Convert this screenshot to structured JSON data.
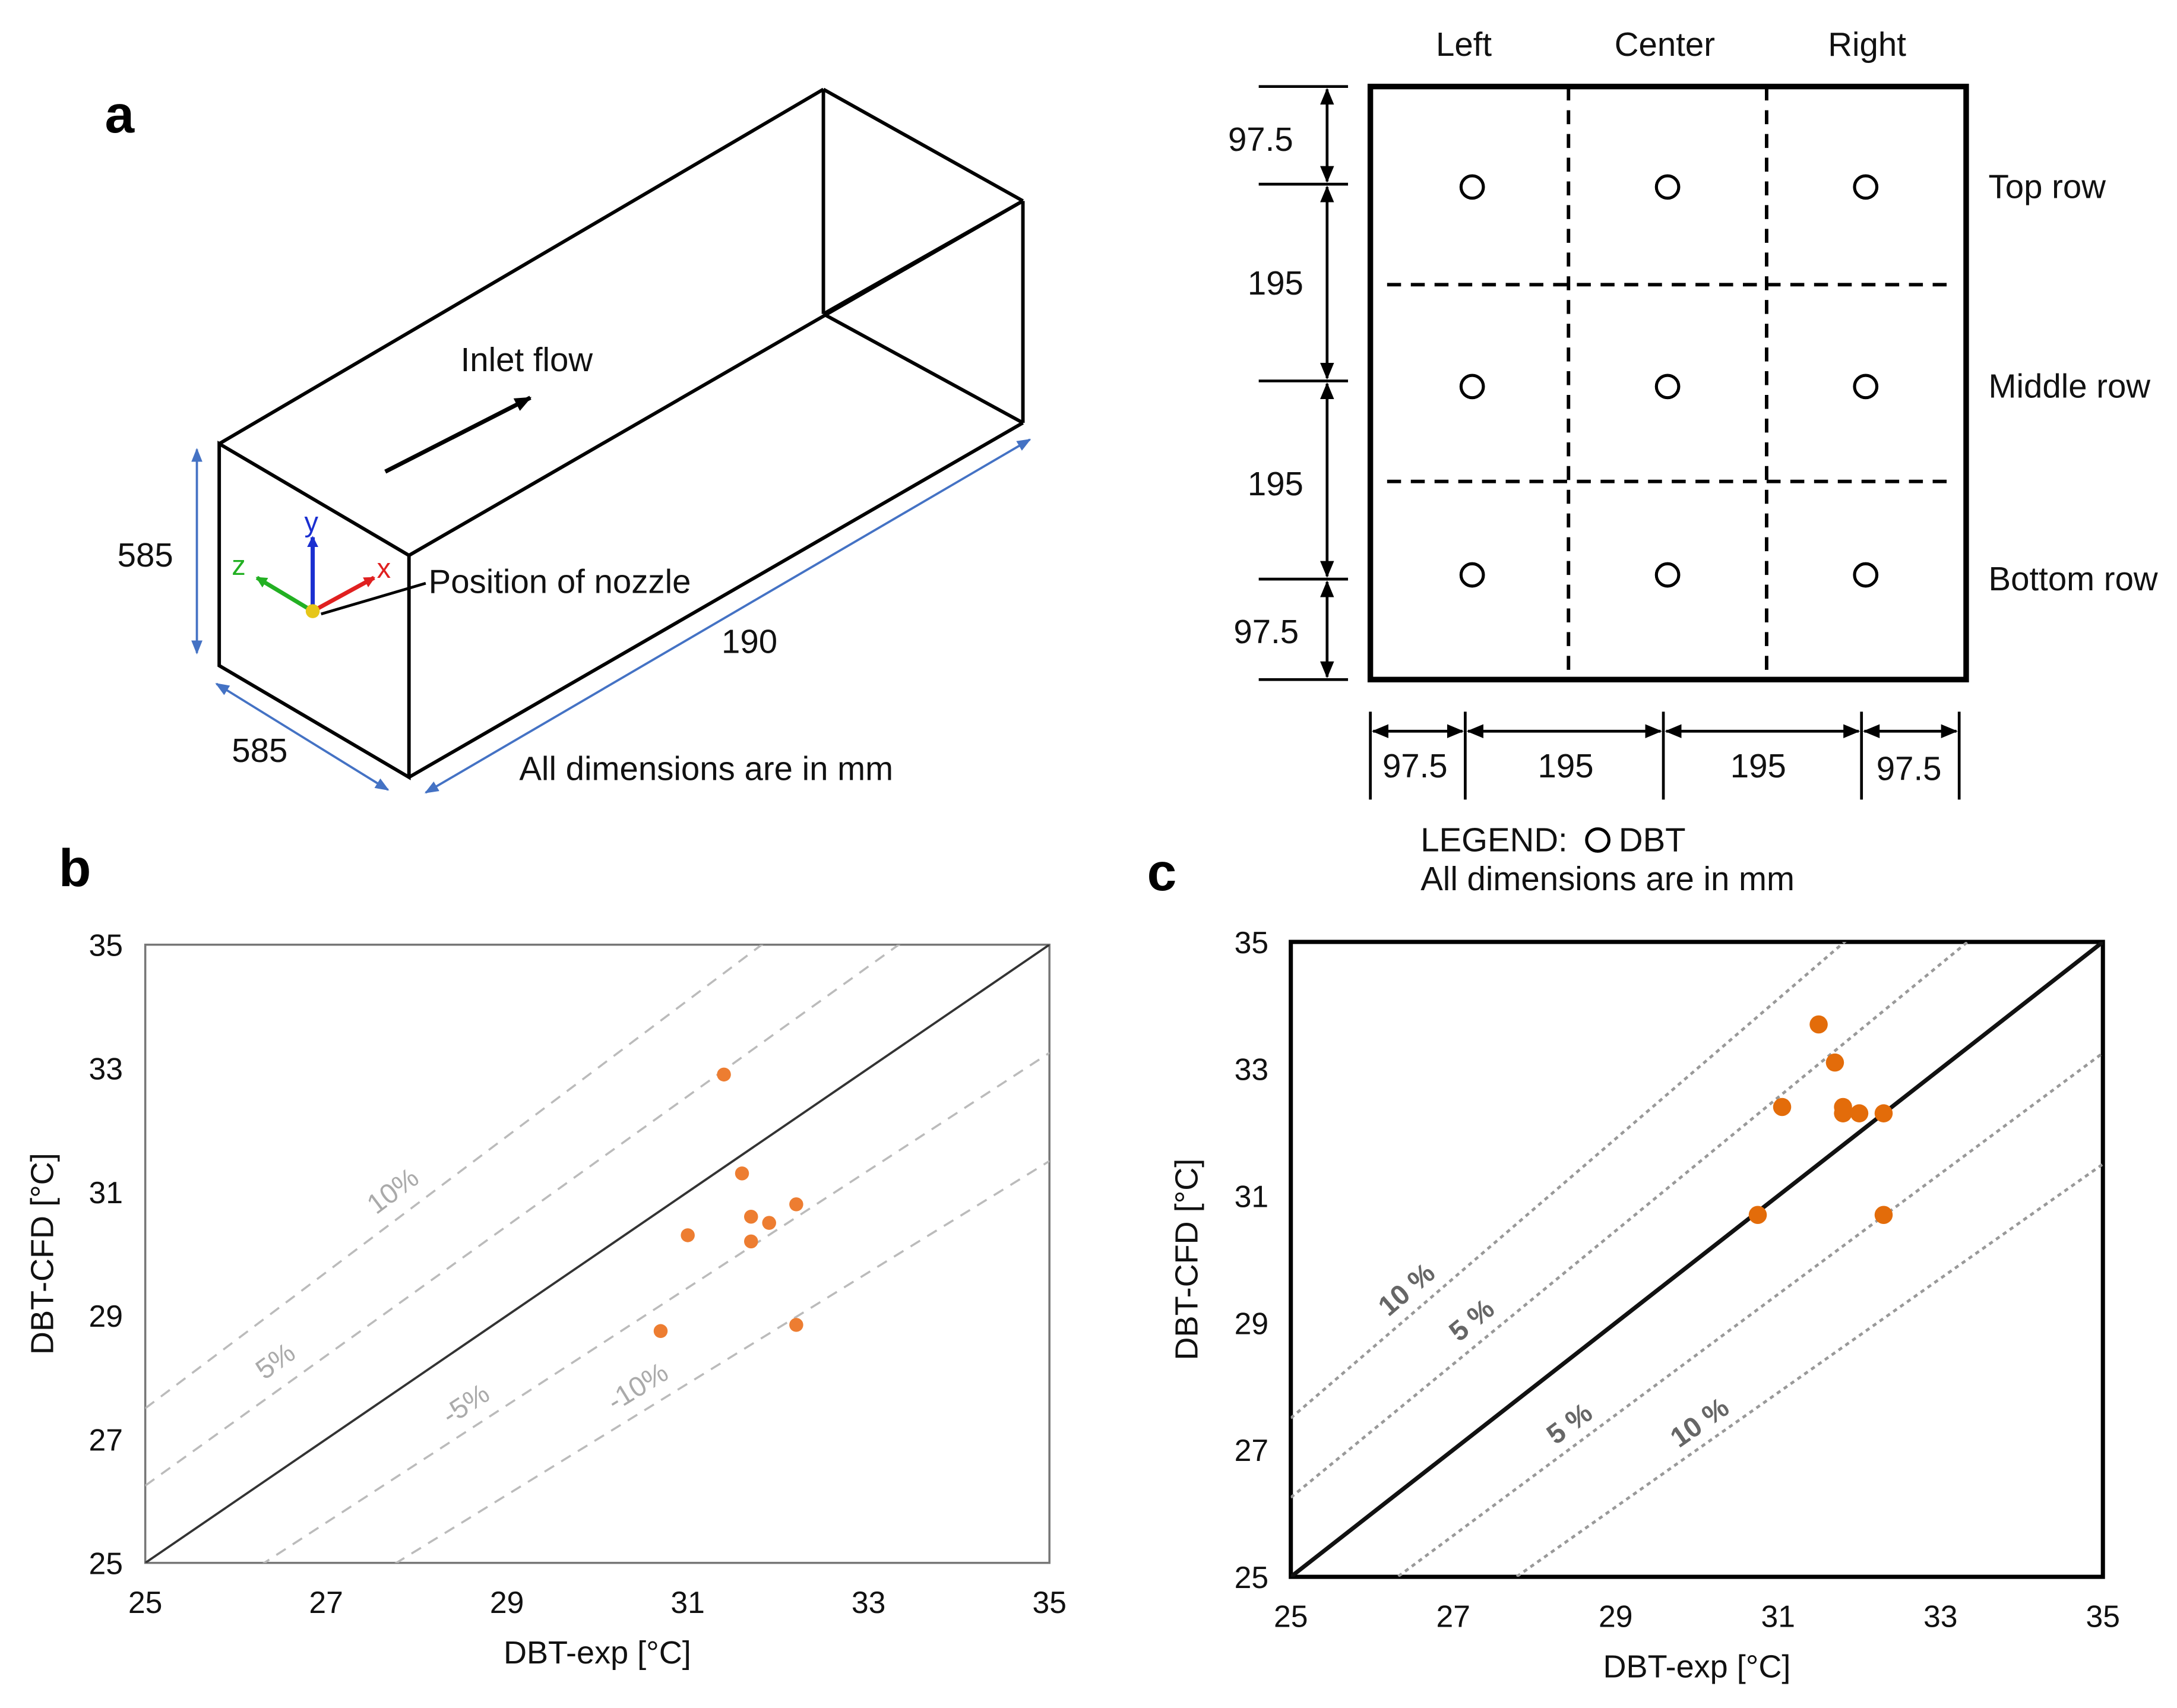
{
  "panel_a": {
    "letter": "a",
    "inlet_label": "Inlet flow",
    "nozzle_label": "Position of nozzle",
    "height_dim": "585",
    "width_dim": "585",
    "length_dim": "190",
    "note": "All dimensions are in mm",
    "axes": {
      "x": "x",
      "y": "y",
      "z": "z"
    },
    "colors": {
      "dimension": "#4472c4",
      "x_axis": "#e02020",
      "y_axis": "#1a2fd0",
      "z_axis": "#22b022",
      "origin": "#e6c619"
    }
  },
  "grid_panel": {
    "columns": [
      "Left",
      "Center",
      "Right"
    ],
    "rows": [
      "Top row",
      "Middle row",
      "Bottom row"
    ],
    "vertical_dims": [
      "97.5",
      "195",
      "195",
      "97.5"
    ],
    "horizontal_dims": [
      "97.5",
      "195",
      "195",
      "97.5"
    ],
    "legend": "LEGEND: ",
    "legend_item": "DBT",
    "note": "All dimensions are in mm"
  },
  "chart_data": [
    {
      "panel": "b",
      "type": "scatter",
      "xlabel": "DBT-exp [°C]",
      "ylabel": "DBT-CFD [°C]",
      "xlim": [
        25,
        35
      ],
      "ylim": [
        25,
        35
      ],
      "xticks": [
        "25",
        "27",
        "29",
        "31",
        "33",
        "35"
      ],
      "yticks": [
        "25",
        "27",
        "29",
        "31",
        "33",
        "35"
      ],
      "reference_lines": [
        {
          "factor": 1.1,
          "label": "10%",
          "style": "dashed"
        },
        {
          "factor": 1.05,
          "label": "5%",
          "style": "dashed"
        },
        {
          "factor": 1.0,
          "label": "",
          "style": "solid"
        },
        {
          "factor": 0.95,
          "label": "-5%",
          "style": "dashed"
        },
        {
          "factor": 0.9,
          "label": "-10%",
          "style": "dashed"
        }
      ],
      "point_color": "#ed7d31",
      "points": [
        {
          "x": 31.4,
          "y": 32.9
        },
        {
          "x": 31.6,
          "y": 31.3
        },
        {
          "x": 31.0,
          "y": 30.3
        },
        {
          "x": 31.7,
          "y": 30.6
        },
        {
          "x": 31.7,
          "y": 30.2
        },
        {
          "x": 31.9,
          "y": 30.5
        },
        {
          "x": 32.2,
          "y": 30.8
        },
        {
          "x": 30.7,
          "y": 28.75
        },
        {
          "x": 32.2,
          "y": 28.85
        }
      ]
    },
    {
      "panel": "c",
      "type": "scatter",
      "xlabel": "DBT-exp [°C]",
      "ylabel": "DBT-CFD [°C]",
      "xlim": [
        25,
        35
      ],
      "ylim": [
        25,
        35
      ],
      "xticks": [
        "25",
        "27",
        "29",
        "31",
        "33",
        "35"
      ],
      "yticks": [
        "25",
        "27",
        "29",
        "31",
        "33",
        "35"
      ],
      "reference_lines": [
        {
          "factor": 1.1,
          "label": "10 %",
          "style": "dotted"
        },
        {
          "factor": 1.05,
          "label": "5 %",
          "style": "dotted"
        },
        {
          "factor": 1.0,
          "label": "",
          "style": "solid"
        },
        {
          "factor": 0.95,
          "label": "5 %",
          "style": "dotted"
        },
        {
          "factor": 0.9,
          "label": "10 %",
          "style": "dotted"
        }
      ],
      "point_color": "#e36c0a",
      "points": [
        {
          "x": 31.5,
          "y": 33.7
        },
        {
          "x": 31.7,
          "y": 33.1
        },
        {
          "x": 31.05,
          "y": 32.4
        },
        {
          "x": 31.8,
          "y": 32.4
        },
        {
          "x": 31.8,
          "y": 32.3
        },
        {
          "x": 32.0,
          "y": 32.3
        },
        {
          "x": 32.3,
          "y": 32.3
        },
        {
          "x": 30.75,
          "y": 30.7
        },
        {
          "x": 32.3,
          "y": 30.7
        }
      ]
    }
  ]
}
